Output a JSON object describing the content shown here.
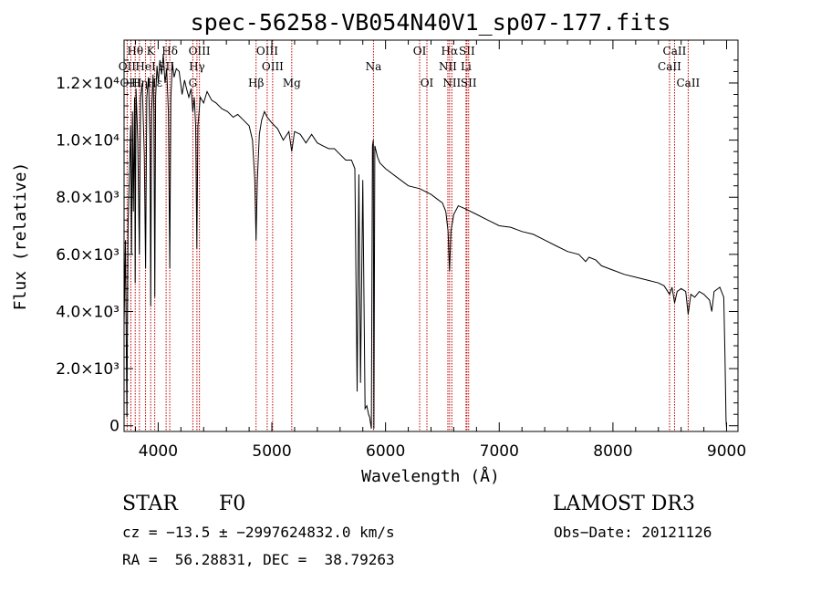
{
  "chart_data": {
    "type": "line",
    "title": "spec-56258-VB054N40V1_sp07-177.fits",
    "xlabel": "Wavelength (Å)",
    "ylabel": "Flux (relative)",
    "xlim": [
      3700,
      9100
    ],
    "ylim": [
      -200,
      13500
    ],
    "x_ticks": [
      {
        "value": 4000,
        "label": "4000"
      },
      {
        "value": 5000,
        "label": "5000"
      },
      {
        "value": 6000,
        "label": "6000"
      },
      {
        "value": 7000,
        "label": "7000"
      },
      {
        "value": 8000,
        "label": "8000"
      },
      {
        "value": 9000,
        "label": "9000"
      }
    ],
    "y_ticks": [
      {
        "value": 0,
        "label": "0"
      },
      {
        "value": 2000,
        "label": "2.0×10³"
      },
      {
        "value": 4000,
        "label": "4.0×10³"
      },
      {
        "value": 6000,
        "label": "6.0×10³"
      },
      {
        "value": 8000,
        "label": "8.0×10³"
      },
      {
        "value": 10000,
        "label": "1.0×10⁴"
      },
      {
        "value": 12000,
        "label": "1.2×10⁴"
      }
    ],
    "spectral_lines": [
      {
        "label": "Hθ",
        "wavelength": 3798,
        "row": 0
      },
      {
        "label": "OII",
        "wavelength": 3727,
        "row": 1
      },
      {
        "label": "OIII",
        "wavelength": 3760,
        "row": 2
      },
      {
        "label": "Hη",
        "wavelength": 3835,
        "row": 2
      },
      {
        "label": "K",
        "wavelength": 3934,
        "row": 0
      },
      {
        "label": "HeI",
        "wavelength": 3889,
        "row": 1
      },
      {
        "label": "Hε",
        "wavelength": 3970,
        "row": 2
      },
      {
        "label": "Hδ",
        "wavelength": 4102,
        "row": 0
      },
      {
        "label": "SII",
        "wavelength": 4070,
        "row": 1
      },
      {
        "label": "OIII",
        "wavelength": 4363,
        "row": 0
      },
      {
        "label": "Hγ",
        "wavelength": 4341,
        "row": 1
      },
      {
        "label": "G",
        "wavelength": 4305,
        "row": 2
      },
      {
        "label": "OIII",
        "wavelength": 4959,
        "row": 0
      },
      {
        "label": "OIII",
        "wavelength": 5007,
        "row": 1
      },
      {
        "label": "Hβ",
        "wavelength": 4861,
        "row": 2
      },
      {
        "label": "Mg",
        "wavelength": 5175,
        "row": 2
      },
      {
        "label": "Na",
        "wavelength": 5894,
        "row": 1
      },
      {
        "label": "OI",
        "wavelength": 6300,
        "row": 0
      },
      {
        "label": "OI",
        "wavelength": 6364,
        "row": 2
      },
      {
        "label": "Hα",
        "wavelength": 6563,
        "row": 0
      },
      {
        "label": "NII",
        "wavelength": 6548,
        "row": 1
      },
      {
        "label": "NII",
        "wavelength": 6583,
        "row": 2
      },
      {
        "label": "SII",
        "wavelength": 6716,
        "row": 0
      },
      {
        "label": "Li",
        "wavelength": 6708,
        "row": 1
      },
      {
        "label": "SII",
        "wavelength": 6731,
        "row": 2
      },
      {
        "label": "CaII",
        "wavelength": 8542,
        "row": 0
      },
      {
        "label": "CaII",
        "wavelength": 8498,
        "row": 1
      },
      {
        "label": "CaII",
        "wavelength": 8662,
        "row": 2
      }
    ],
    "series": [
      {
        "name": "flux",
        "points": [
          [
            3700,
            3500
          ],
          [
            3712,
            6500
          ],
          [
            3725,
            300
          ],
          [
            3735,
            7000
          ],
          [
            3748,
            9000
          ],
          [
            3758,
            10500
          ],
          [
            3766,
            6000
          ],
          [
            3774,
            11000
          ],
          [
            3782,
            7500
          ],
          [
            3792,
            11500
          ],
          [
            3798,
            5000
          ],
          [
            3805,
            11800
          ],
          [
            3820,
            10000
          ],
          [
            3835,
            6000
          ],
          [
            3845,
            11500
          ],
          [
            3860,
            12000
          ],
          [
            3878,
            9500
          ],
          [
            3889,
            5500
          ],
          [
            3900,
            11500
          ],
          [
            3915,
            12200
          ],
          [
            3928,
            10000
          ],
          [
            3934,
            4200
          ],
          [
            3942,
            11000
          ],
          [
            3955,
            12300
          ],
          [
            3962,
            11000
          ],
          [
            3970,
            4500
          ],
          [
            3978,
            11500
          ],
          [
            3990,
            12600
          ],
          [
            4002,
            12000
          ],
          [
            4015,
            12800
          ],
          [
            4030,
            12300
          ],
          [
            4045,
            13000
          ],
          [
            4060,
            12000
          ],
          [
            4075,
            12500
          ],
          [
            4090,
            11000
          ],
          [
            4102,
            5500
          ],
          [
            4112,
            11500
          ],
          [
            4125,
            12700
          ],
          [
            4140,
            12200
          ],
          [
            4160,
            12500
          ],
          [
            4185,
            12400
          ],
          [
            4210,
            11600
          ],
          [
            4232,
            12100
          ],
          [
            4250,
            11800
          ],
          [
            4270,
            11500
          ],
          [
            4290,
            11800
          ],
          [
            4305,
            11000
          ],
          [
            4318,
            11500
          ],
          [
            4330,
            10500
          ],
          [
            4340,
            6200
          ],
          [
            4350,
            10500
          ],
          [
            4370,
            11500
          ],
          [
            4400,
            11300
          ],
          [
            4430,
            11700
          ],
          [
            4470,
            11400
          ],
          [
            4510,
            11300
          ],
          [
            4560,
            11100
          ],
          [
            4610,
            11000
          ],
          [
            4660,
            10800
          ],
          [
            4700,
            10900
          ],
          [
            4750,
            10700
          ],
          [
            4800,
            10500
          ],
          [
            4830,
            10000
          ],
          [
            4850,
            8600
          ],
          [
            4861,
            6500
          ],
          [
            4872,
            8600
          ],
          [
            4890,
            10200
          ],
          [
            4910,
            10700
          ],
          [
            4935,
            11000
          ],
          [
            4960,
            10800
          ],
          [
            5000,
            10600
          ],
          [
            5050,
            10400
          ],
          [
            5100,
            10000
          ],
          [
            5150,
            10300
          ],
          [
            5175,
            9600
          ],
          [
            5200,
            10300
          ],
          [
            5250,
            10200
          ],
          [
            5300,
            9900
          ],
          [
            5350,
            10200
          ],
          [
            5400,
            9900
          ],
          [
            5450,
            9800
          ],
          [
            5500,
            9700
          ],
          [
            5550,
            9700
          ],
          [
            5600,
            9500
          ],
          [
            5650,
            9300
          ],
          [
            5700,
            9300
          ],
          [
            5730,
            9000
          ],
          [
            5750,
            1200
          ],
          [
            5765,
            8800
          ],
          [
            5780,
            1500
          ],
          [
            5800,
            8600
          ],
          [
            5820,
            600
          ],
          [
            5835,
            700
          ],
          [
            5850,
            400
          ],
          [
            5860,
            300
          ],
          [
            5875,
            -100
          ],
          [
            5885,
            9800
          ],
          [
            5892,
            10000
          ],
          [
            5898,
            -100
          ],
          [
            5906,
            9800
          ],
          [
            5930,
            9400
          ],
          [
            5950,
            9200
          ],
          [
            6000,
            9000
          ],
          [
            6100,
            8700
          ],
          [
            6200,
            8400
          ],
          [
            6300,
            8300
          ],
          [
            6400,
            8100
          ],
          [
            6450,
            7950
          ],
          [
            6500,
            7800
          ],
          [
            6530,
            7500
          ],
          [
            6550,
            6800
          ],
          [
            6563,
            5400
          ],
          [
            6575,
            6800
          ],
          [
            6600,
            7400
          ],
          [
            6640,
            7700
          ],
          [
            6700,
            7600
          ],
          [
            6800,
            7400
          ],
          [
            6900,
            7200
          ],
          [
            7000,
            7000
          ],
          [
            7100,
            6950
          ],
          [
            7200,
            6800
          ],
          [
            7300,
            6700
          ],
          [
            7400,
            6500
          ],
          [
            7500,
            6300
          ],
          [
            7600,
            6100
          ],
          [
            7700,
            6000
          ],
          [
            7760,
            5750
          ],
          [
            7790,
            5900
          ],
          [
            7850,
            5800
          ],
          [
            7900,
            5600
          ],
          [
            8000,
            5450
          ],
          [
            8100,
            5300
          ],
          [
            8200,
            5200
          ],
          [
            8300,
            5100
          ],
          [
            8400,
            5000
          ],
          [
            8450,
            4900
          ],
          [
            8498,
            4600
          ],
          [
            8520,
            4850
          ],
          [
            8542,
            4300
          ],
          [
            8565,
            4700
          ],
          [
            8600,
            4800
          ],
          [
            8640,
            4700
          ],
          [
            8662,
            3900
          ],
          [
            8685,
            4600
          ],
          [
            8720,
            4500
          ],
          [
            8760,
            4700
          ],
          [
            8800,
            4600
          ],
          [
            8850,
            4400
          ],
          [
            8870,
            4000
          ],
          [
            8890,
            4700
          ],
          [
            8940,
            4850
          ],
          [
            8975,
            4500
          ],
          [
            8985,
            2500
          ],
          [
            8995,
            200
          ],
          [
            9000,
            -100
          ]
        ]
      }
    ]
  },
  "info": {
    "object_class": "STAR",
    "subclass": "F0",
    "survey": "LAMOST DR3",
    "cz": "cz = −13.5 ± −2997624832.0 km/s",
    "obs_date": "Obs−Date: 20121126",
    "radec": "RA =  56.28831, DEC =  38.79263"
  }
}
